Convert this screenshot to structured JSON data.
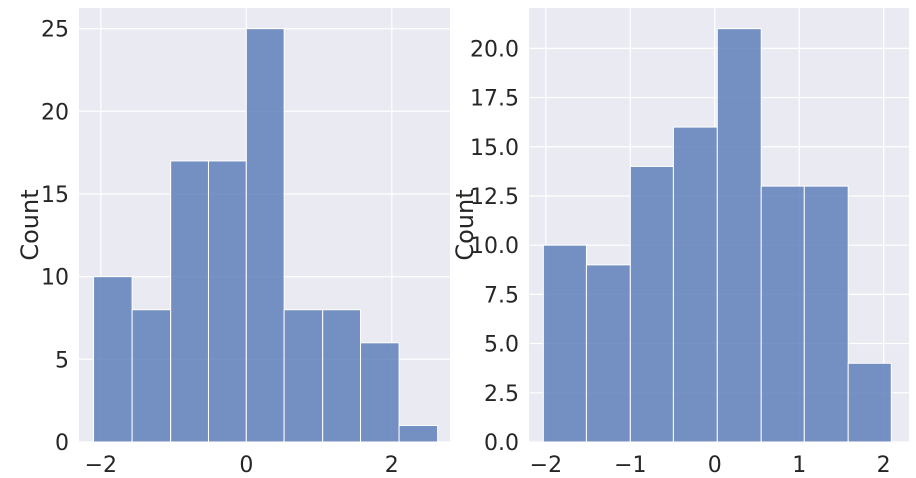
{
  "chart_data": [
    {
      "type": "bar",
      "subtype": "histogram",
      "xlabel": "",
      "ylabel": "Count",
      "xlim": [
        -2.3,
        2.8
      ],
      "ylim": [
        0,
        26.25
      ],
      "xticks": [
        -2,
        0,
        2
      ],
      "xtick_labels": [
        "−2",
        "0",
        "2"
      ],
      "yticks": [
        0,
        5,
        10,
        15,
        20,
        25
      ],
      "ytick_labels": [
        "0",
        "5",
        "10",
        "15",
        "20",
        "25"
      ],
      "bin_edges": [
        -2.1,
        -1.57,
        -1.04,
        -0.52,
        0.0,
        0.52,
        1.05,
        1.57,
        2.1,
        2.63
      ],
      "values": [
        10,
        8,
        17,
        17,
        25,
        8,
        8,
        6,
        1
      ],
      "grid": true,
      "bar_color": "#5f7fba"
    },
    {
      "type": "bar",
      "subtype": "histogram",
      "xlabel": "",
      "ylabel": "Count",
      "xlim": [
        -2.2,
        2.3
      ],
      "ylim": [
        0,
        22.05
      ],
      "xticks": [
        -2,
        -1,
        0,
        1,
        2
      ],
      "xtick_labels": [
        "−2",
        "−1",
        "0",
        "1",
        "2"
      ],
      "yticks": [
        0,
        2.5,
        5,
        7.5,
        10,
        12.5,
        15,
        17.5,
        20
      ],
      "ytick_labels": [
        "0.0",
        "2.5",
        "5.0",
        "7.5",
        "10.0",
        "12.5",
        "15.0",
        "17.5",
        "20.0"
      ],
      "bin_edges": [
        -2.03,
        -1.52,
        -1.0,
        -0.49,
        0.03,
        0.55,
        1.06,
        1.58,
        2.09
      ],
      "values": [
        10,
        9,
        14,
        16,
        21,
        13,
        13,
        4
      ],
      "grid": true,
      "bar_color": "#5f7fba"
    }
  ],
  "colors": {
    "plot_background": "#eaeaf2",
    "grid": "#ffffff",
    "bar_fill": "#5f7fba",
    "bar_edge": "#ffffff",
    "text": "#262626"
  }
}
